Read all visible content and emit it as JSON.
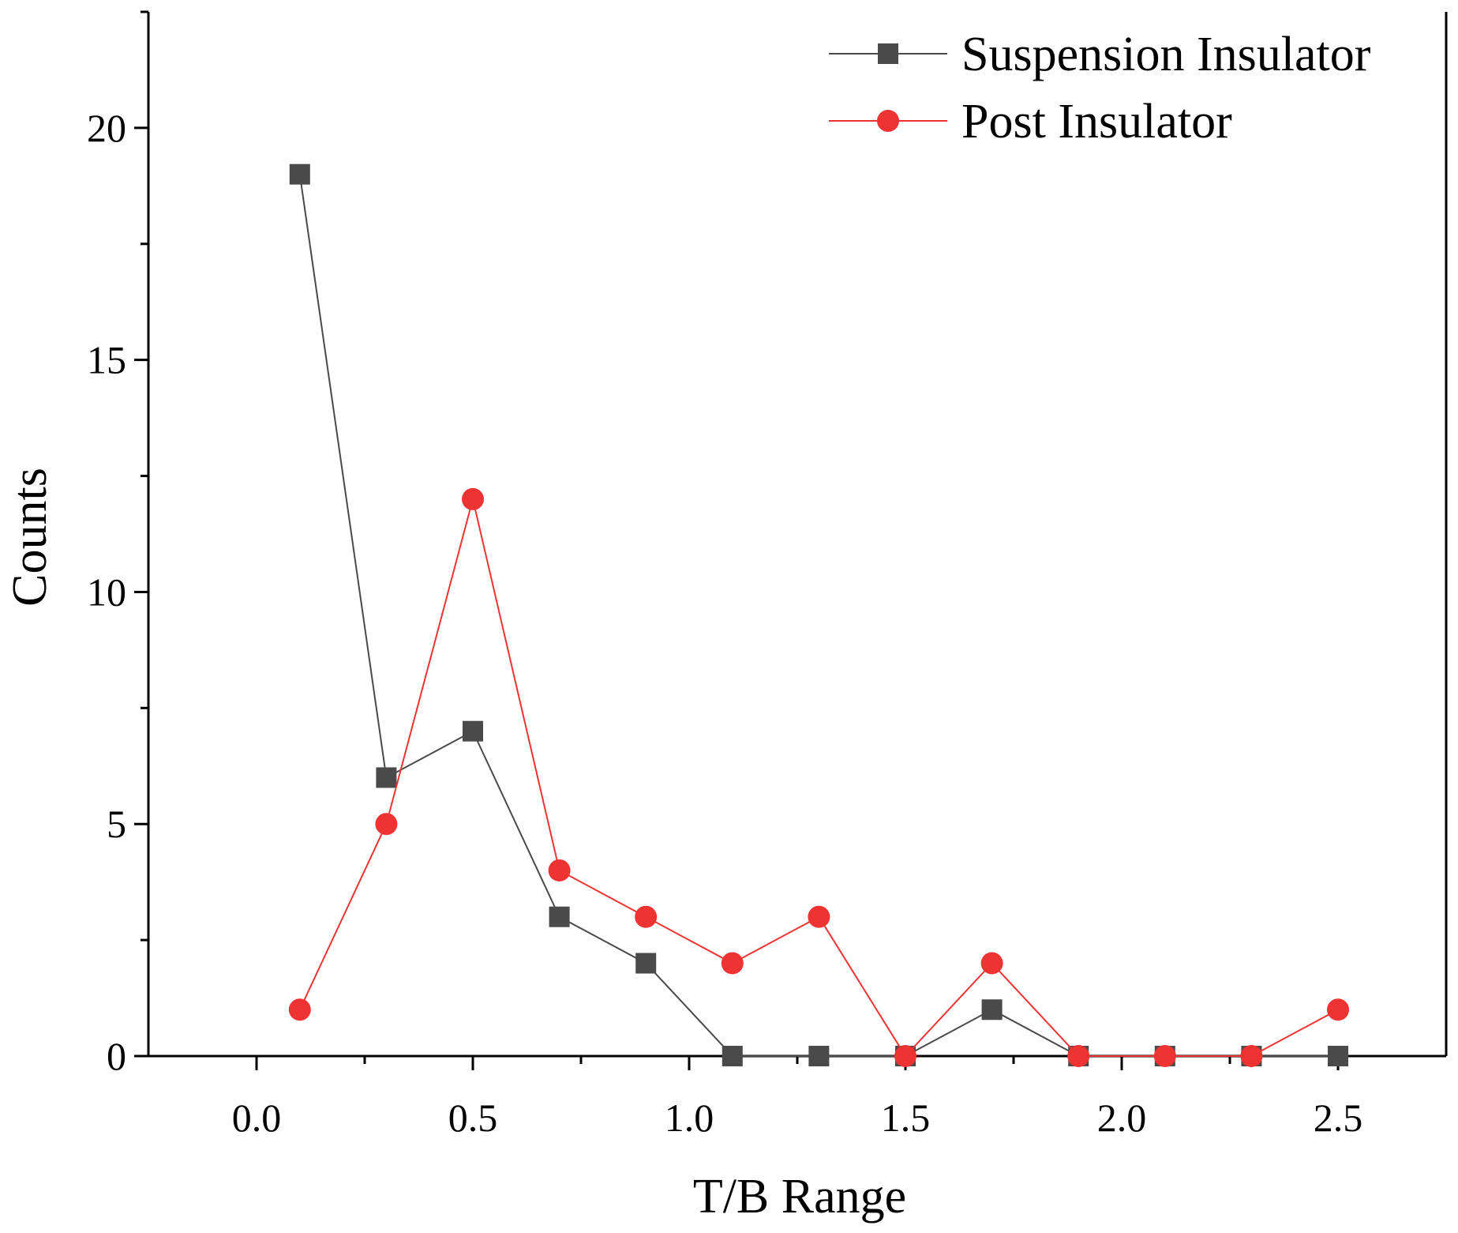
{
  "chart_data": {
    "type": "line",
    "title": "",
    "xlabel": "T/B Range",
    "ylabel": "Counts",
    "xlim": [
      -0.25,
      2.75
    ],
    "ylim": [
      0,
      22.5
    ],
    "xticks": [
      0.0,
      0.5,
      1.0,
      1.5,
      2.0,
      2.5
    ],
    "xtick_labels": [
      "0.0",
      "0.5",
      "1.0",
      "1.5",
      "2.0",
      "2.5"
    ],
    "yticks": [
      0,
      5,
      10,
      15,
      20
    ],
    "ytick_labels": [
      "0",
      "5",
      "10",
      "15",
      "20"
    ],
    "legend_position": "top-right",
    "grid": false,
    "x": [
      0.1,
      0.3,
      0.5,
      0.7,
      0.9,
      1.1,
      1.3,
      1.5,
      1.7,
      1.9,
      2.1,
      2.3,
      2.5
    ],
    "series": [
      {
        "name": "Suspension Insulator",
        "color": "#4a4a4a",
        "marker": "square",
        "values": [
          19,
          6,
          7,
          3,
          2,
          0,
          0,
          0,
          1,
          0,
          0,
          0,
          0
        ]
      },
      {
        "name": "Post Insulator",
        "color": "#ee3333",
        "marker": "circle",
        "values": [
          1,
          5,
          12,
          4,
          3,
          2,
          3,
          0,
          2,
          0,
          0,
          0,
          1
        ]
      }
    ]
  }
}
